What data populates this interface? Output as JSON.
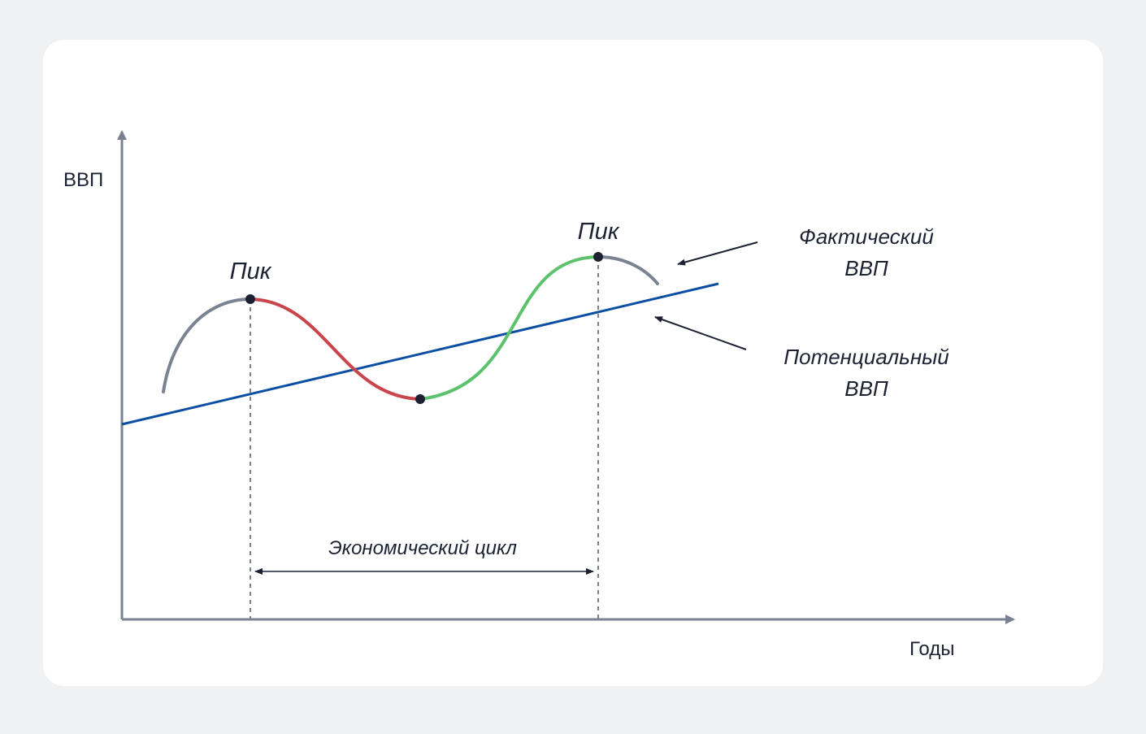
{
  "axes": {
    "y_label": "ВВП",
    "x_label": "Годы"
  },
  "labels": {
    "peak_1": "Пик",
    "peak_2": "Пик",
    "actual_gdp_line1": "Фактический",
    "actual_gdp_line2": "ВВП",
    "potential_gdp_line1": "Потенциальный",
    "potential_gdp_line2": "ВВП",
    "cycle": "Экономический цикл"
  },
  "colors": {
    "background": "#eff1f3",
    "card": "#ffffff",
    "axis": "#7a8191",
    "trend": "#0b4ea2",
    "gray_segment": "#7a8391",
    "decline_segment": "#c9454b",
    "growth_segment": "#5dc26c",
    "points": "#1d2233",
    "text": "#1d2233"
  }
}
